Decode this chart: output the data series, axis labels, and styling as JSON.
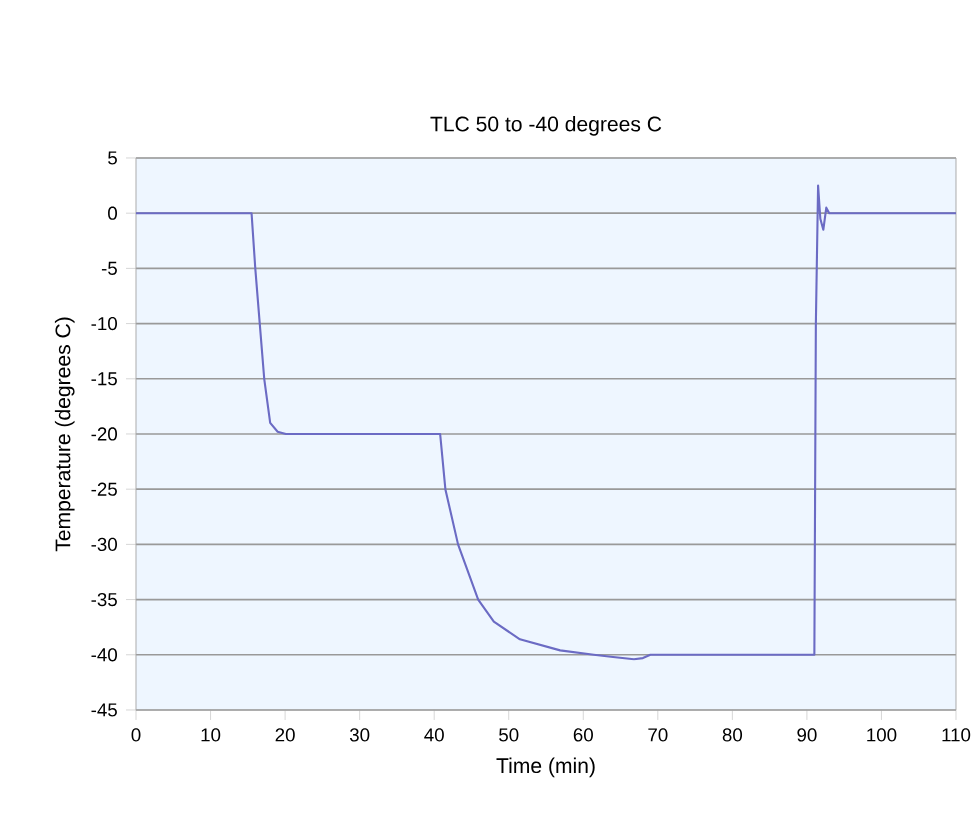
{
  "chart_data": {
    "type": "line",
    "title": "TLC 50 to -40 degrees C",
    "xlabel": "Time (min)",
    "ylabel": "Temperature (degrees C)",
    "xlim": [
      0,
      110
    ],
    "xticks": [
      0,
      10,
      20,
      30,
      40,
      50,
      60,
      70,
      80,
      90,
      100,
      110
    ],
    "ylim": [
      -45,
      5
    ],
    "yticks": [
      -45,
      -40,
      -35,
      -30,
      -25,
      -20,
      -15,
      -10,
      -5,
      0,
      5
    ],
    "grid": "y",
    "marker": "none",
    "line_style": "solid",
    "series": [
      {
        "color": "#6b6bc4",
        "x": [
          0,
          15.5,
          16,
          16.6,
          17.2,
          18,
          19,
          20.1,
          40.5,
          40.8,
          41.5,
          43.2,
          45.9,
          48,
          51.5,
          56.9,
          61.4,
          64,
          66.8,
          68,
          69,
          91,
          91.2,
          91.5,
          91.8,
          92.2,
          92.6,
          93,
          110
        ],
        "values": [
          0,
          0,
          -5,
          -10,
          -15,
          -19,
          -19.8,
          -20,
          -20,
          -20,
          -25,
          -30,
          -35,
          -37,
          -38.6,
          -39.6,
          -40,
          -40.2,
          -40.4,
          -40.3,
          -40,
          -40,
          -10,
          2.5,
          -0.5,
          -1.5,
          0.5,
          0,
          0
        ]
      }
    ]
  }
}
